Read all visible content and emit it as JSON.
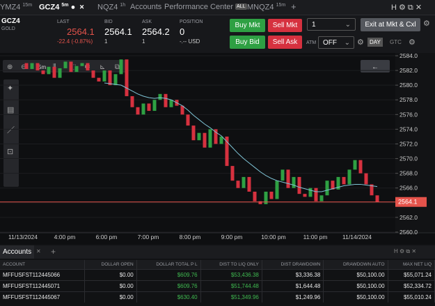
{
  "tabs": [
    {
      "label": "YMZ4",
      "interval": "15m"
    },
    {
      "label": "GCZ4",
      "interval": "5m"
    },
    {
      "label": "NQZ4",
      "interval": "1h"
    },
    {
      "label": "Accounts"
    },
    {
      "label": "Performance Center",
      "badge": "ALL"
    },
    {
      "label": "MNQZ4",
      "interval": "15m"
    }
  ],
  "quote": {
    "symbol": "GCZ4",
    "name": "GOLD",
    "last_label": "LAST",
    "last": "2564.1",
    "change": "-22.4 (-0.87%)",
    "bid_label": "BID",
    "bid": "2564.1",
    "bid_size": "1",
    "ask_label": "ASK",
    "ask": "2564.2",
    "ask_size": "1",
    "position_label": "POSITION",
    "position": "0",
    "position_value": "-.-- USD"
  },
  "order": {
    "buy_mkt": "Buy Mkt",
    "sell_mkt": "Sell Mkt",
    "buy_bid": "Buy Bid",
    "sell_ask": "Sell Ask",
    "quantity": "1",
    "atm_label": "ATM",
    "atm": "OFF",
    "day": "DAY",
    "gtc": "GTC",
    "exit": "Exit at Mkt & Cxl"
  },
  "chart": {
    "interval": "5m",
    "ylim": [
      2559.9,
      2584.38
    ],
    "yticks": [
      {
        "value": 2584,
        "label": "2584.0"
      },
      {
        "value": 2582,
        "label": "2582.0"
      },
      {
        "value": 2580,
        "label": "2580.0"
      },
      {
        "value": 2578,
        "label": "2578.0"
      },
      {
        "value": 2576,
        "label": "2576.0"
      },
      {
        "value": 2574,
        "label": "2574.0"
      },
      {
        "value": 2572,
        "label": "2572.0"
      },
      {
        "value": 2570,
        "label": "2570.0"
      },
      {
        "value": 2568,
        "label": "2568.0"
      },
      {
        "value": 2566,
        "label": "2566.0"
      },
      {
        "value": 2564,
        "label": "2564.0"
      },
      {
        "value": 2562,
        "label": "2562.0"
      },
      {
        "value": 2560,
        "label": "2560.0"
      }
    ],
    "time_labels": [
      "11/13/2024",
      "4:00 pm",
      "6:00 pm",
      "7:00 pm",
      "8:00 pm",
      "9:00 pm",
      "10:00 pm",
      "11:00 pm",
      "11/14/2024"
    ],
    "last_price": 2564.1,
    "closes": [
      2583.0,
      2582.2,
      2583.0,
      2582.0,
      2581.5,
      2582.5,
      2581.0,
      2582.3,
      2583.2,
      2581.8,
      2582.6,
      2583.0,
      2582.0,
      2581.0,
      2580.5,
      2582.0,
      2580.0,
      2581.5,
      2583.5,
      2578.5,
      2577.0,
      2576.0,
      2577.5,
      2576.5,
      2578.0,
      2578.8,
      2577.0,
      2578.0,
      2577.2,
      2576.0,
      2574.5,
      2572.5,
      2573.5,
      2571.5,
      2574.0,
      2572.0,
      2573.0,
      2569.0,
      2567.0,
      2566.0,
      2567.5,
      2565.5,
      2564.2,
      2563.8,
      2565.5,
      2564.5,
      2567.0,
      2568.5,
      2566.0,
      2567.5,
      2565.2,
      2564.8,
      2566.0,
      2564.2,
      2565.0,
      2567.0,
      2565.8,
      2567.5,
      2566.5,
      2568.5,
      2569.8,
      2568.0,
      2566.5,
      2565.0,
      2564.1
    ],
    "moving_average": [
      null,
      null,
      null,
      null,
      null,
      null,
      null,
      null,
      null,
      null,
      null,
      null,
      null,
      null,
      null,
      2580.3,
      2580.2,
      2580.1,
      2580.0,
      2579.6,
      2579.2,
      2578.8,
      2578.5,
      2578.3,
      2578.2,
      2578.3,
      2578.2,
      2578.0,
      2577.6,
      2577.2,
      2576.6,
      2575.9,
      2575.3,
      2574.7,
      2574.2,
      2573.6,
      2573.1,
      2572.3,
      2571.5,
      2570.7,
      2570.0,
      2569.4,
      2568.8,
      2568.2,
      2567.7,
      2567.3,
      2567.0,
      2566.8,
      2566.6,
      2566.4,
      2566.1,
      2565.9,
      2565.7,
      2565.5,
      2565.5,
      2565.7,
      2565.9,
      2566.1,
      2566.3,
      2566.4,
      2566.5,
      2566.5,
      2566.4,
      2566.3,
      2566.2
    ]
  },
  "accounts": {
    "title": "Accounts",
    "columns": [
      "ACCOUNT",
      "DOLLAR OPEN",
      "DOLLAR TOTAL P L",
      "DIST TO LIQ ONLY",
      "DIST DRAWDOWN",
      "DRAWDOWN AUTO",
      "MAX NET LIQ"
    ],
    "rows": [
      [
        "MFFUSFST112445066",
        "$0.00",
        "$609.76",
        "$53,436.38",
        "$3,336.38",
        "$50,100.00",
        "$55,071.24"
      ],
      [
        "MFFUSFST112445071",
        "$0.00",
        "$609.76",
        "$51,744.48",
        "$1,644.48",
        "$50,100.00",
        "$52,334.72"
      ],
      [
        "MFFUSFST112445067",
        "$0.00",
        "$630.40",
        "$51,349.96",
        "$1,249.96",
        "$50,100.00",
        "$55,010.24"
      ]
    ]
  }
}
